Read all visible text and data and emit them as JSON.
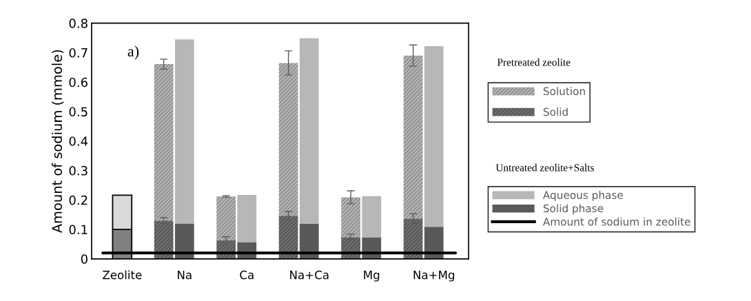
{
  "chart_data": {
    "type": "bar",
    "stacked": true,
    "ylabel": "Amount of sodium (mmole)",
    "categories": [
      "Zeolite",
      null,
      null,
      "Na",
      null,
      null,
      "Ca",
      null,
      null,
      "Na+Ca",
      null,
      null,
      "Mg",
      null,
      null,
      "Na+Mg"
    ],
    "series": [
      {
        "color": "#808080",
        "values": [
          0.1,
          null,
          null,
          null,
          null,
          null,
          null,
          null,
          null,
          null,
          null,
          null,
          null,
          null,
          null,
          null
        ]
      },
      {
        "color": "#d9d9d9",
        "values": [
          0.116,
          null,
          null,
          null,
          null,
          null,
          null,
          null,
          null,
          null,
          null,
          null,
          null,
          null,
          null,
          null
        ]
      },
      {
        "name": "Solid",
        "color": "#595959",
        "values": [
          null,
          null,
          0.13,
          null,
          null,
          0.064,
          null,
          null,
          0.146,
          null,
          null,
          0.074,
          null,
          null,
          0.137,
          null
        ],
        "errors": [
          null,
          null,
          0.01,
          null,
          null,
          0.011,
          null,
          null,
          0.015,
          null,
          null,
          0.01,
          null,
          null,
          0.016,
          null
        ]
      },
      {
        "name": "Solution",
        "color": "#b3b3b3",
        "values": [
          null,
          null,
          0.531,
          null,
          null,
          0.148,
          null,
          null,
          0.519,
          null,
          null,
          0.135,
          null,
          null,
          0.553,
          null
        ],
        "errors": [
          null,
          null,
          0.017,
          null,
          null,
          0.003,
          null,
          null,
          0.041,
          null,
          null,
          0.022,
          null,
          null,
          0.036,
          null
        ]
      },
      {
        "name": "Solid phase",
        "color": "#595959",
        "values": [
          null,
          null,
          null,
          0.12,
          null,
          null,
          0.057,
          null,
          null,
          0.119,
          null,
          null,
          0.073,
          null,
          null,
          0.109
        ]
      },
      {
        "name": "Aqueous phase",
        "color": "#b7b7b7",
        "values": [
          null,
          null,
          null,
          0.625,
          null,
          null,
          0.16,
          null,
          null,
          0.63,
          null,
          null,
          0.14,
          null,
          null,
          0.613
        ]
      }
    ],
    "ref_lines": [
      {
        "axis": "y",
        "value": 0.02,
        "label": "Amount of sodium in zeolite",
        "color": "#000000"
      }
    ],
    "ylim": [
      0,
      0.8
    ],
    "yticks": [
      0,
      0.1,
      0.2,
      0.3,
      0.4,
      0.5,
      0.6,
      0.7,
      0.8
    ],
    "grid": false,
    "legend": "right",
    "annotations": [
      "a)",
      "Pretreated zeolite",
      "Untreated zeolite+Salts"
    ]
  }
}
